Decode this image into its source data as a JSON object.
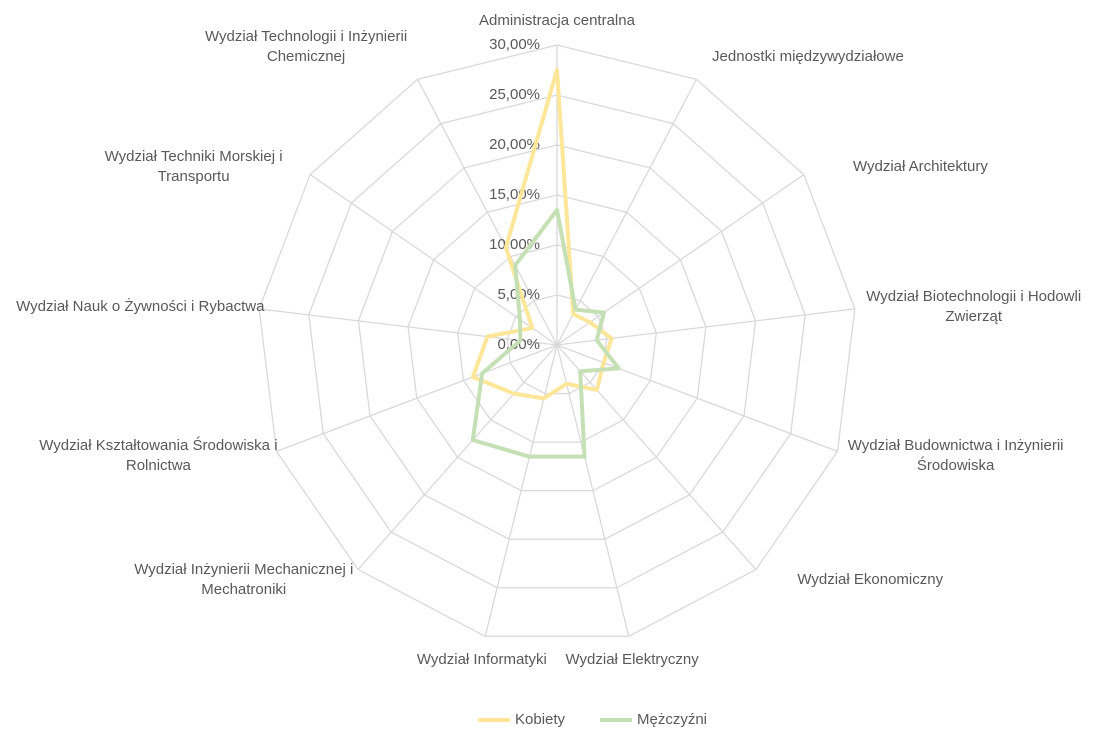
{
  "chart_data": {
    "type": "radar",
    "categories": [
      "Administracja centralna",
      "Jednostki międzywydziałowe",
      "Wydział Architektury",
      "Wydział Biotechnologii i Hodowli Zwierząt",
      "Wydział Budownictwa i Inżynierii Środowiska",
      "Wydział Ekonomiczny",
      "Wydział Elektryczny",
      "Wydział Informatyki",
      "Wydział Inżynierii Mechanicznej i Mechatroniki",
      "Wydział Kształtowania Środowiska i Rolnictwa",
      "Wydział Nauk o Żywności i Rybactwa",
      "Wydział Techniki Morskiej i Transportu",
      "Wydział Technologii i Inżynierii Chemicznej"
    ],
    "series": [
      {
        "name": "Kobiety",
        "color": "#ffe699",
        "values": [
          27.5,
          3.5,
          4,
          5.5,
          5,
          6,
          4,
          5.5,
          6.5,
          9,
          7,
          3,
          11
        ]
      },
      {
        "name": "Mężczyźni",
        "color": "#c5e0b4",
        "values": [
          13.5,
          4,
          5.7,
          4,
          6.6,
          3.5,
          11.5,
          11.5,
          12.7,
          8,
          3.7,
          4.5,
          9
        ]
      }
    ],
    "ylim": [
      0,
      30
    ],
    "yticks": [
      {
        "value": 0,
        "label": "0,00%"
      },
      {
        "value": 5,
        "label": "5,00%"
      },
      {
        "value": 10,
        "label": "10,00%"
      },
      {
        "value": 15,
        "label": "15,00%"
      },
      {
        "value": 20,
        "label": "20,00%"
      },
      {
        "value": 25,
        "label": "25,00%"
      },
      {
        "value": 30,
        "label": "30,00%"
      }
    ],
    "grid": true,
    "legend": "bottom"
  }
}
